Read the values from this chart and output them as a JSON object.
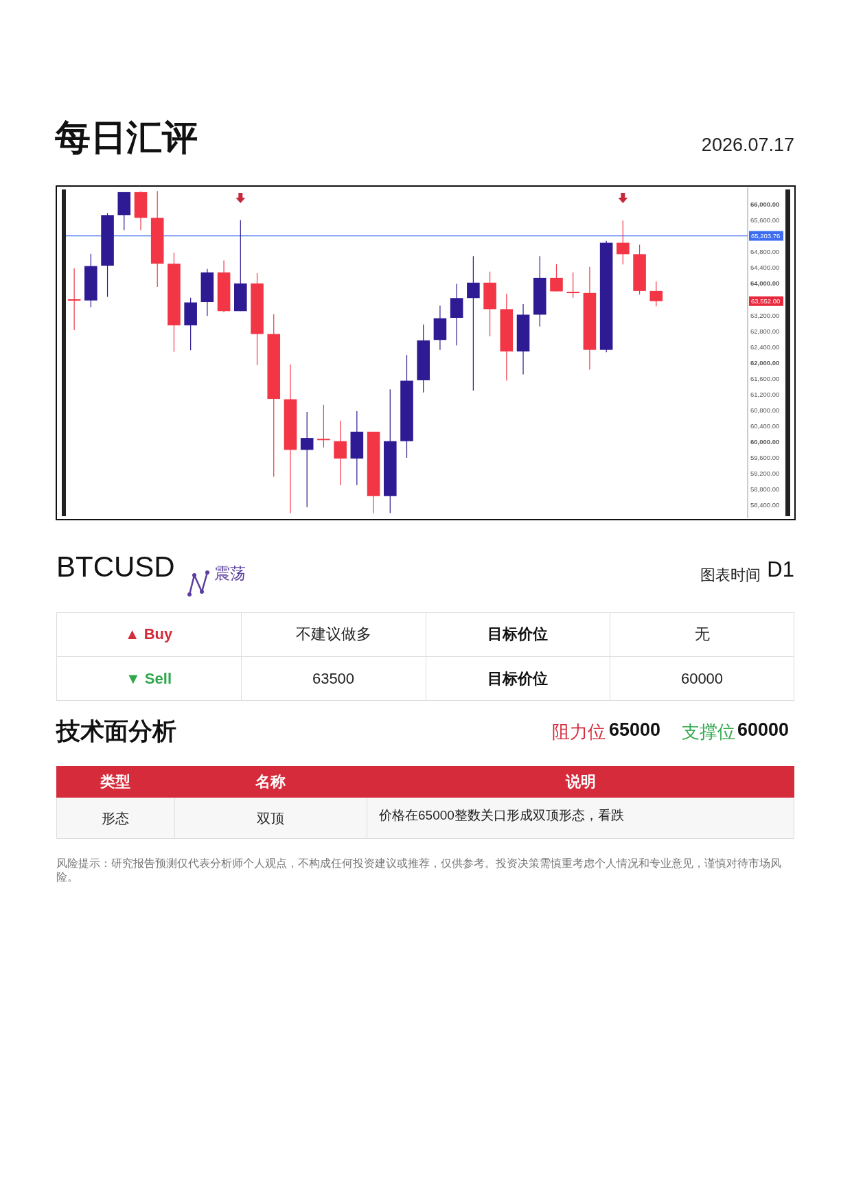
{
  "chart_data": {
    "type": "candlestick",
    "title": "每日汇评",
    "subtitle": "2026.07.17",
    "categories": [
      null,
      null,
      null,
      null,
      null,
      null,
      null,
      null,
      null,
      null,
      null,
      null,
      null,
      null,
      null,
      null,
      null,
      null,
      null,
      null,
      null,
      null,
      null,
      null,
      null,
      null,
      null,
      null,
      null,
      null,
      null,
      null,
      null,
      null,
      null,
      null,
      null,
      null,
      null,
      null,
      null
    ],
    "ohlc": [
      [
        63600,
        64380,
        62820,
        63590
      ],
      [
        63570,
        64750,
        63400,
        64440
      ],
      [
        64450,
        65780,
        63660,
        65730
      ],
      [
        65730,
        66310,
        65350,
        66310
      ],
      [
        66310,
        66330,
        65350,
        65660
      ],
      [
        65660,
        66340,
        63910,
        64500
      ],
      [
        64500,
        64780,
        62270,
        62940
      ],
      [
        62940,
        63640,
        62310,
        63520
      ],
      [
        63530,
        64370,
        63180,
        64280
      ],
      [
        64280,
        64580,
        63270,
        63300
      ],
      [
        63300,
        65600,
        63300,
        64000
      ],
      [
        64000,
        64260,
        61930,
        62720
      ],
      [
        62720,
        63220,
        59110,
        61080
      ],
      [
        61070,
        61950,
        58190,
        59790
      ],
      [
        59790,
        60750,
        58340,
        60090
      ],
      [
        60070,
        60930,
        59850,
        60040
      ],
      [
        60010,
        60530,
        58900,
        59570
      ],
      [
        59570,
        60770,
        58900,
        60250
      ],
      [
        60250,
        60250,
        58190,
        58620
      ],
      [
        58620,
        61320,
        58190,
        60010
      ],
      [
        60010,
        62190,
        59590,
        61540
      ],
      [
        61550,
        62960,
        61240,
        62560
      ],
      [
        62570,
        63440,
        62320,
        63120
      ],
      [
        63130,
        63990,
        62430,
        63630
      ],
      [
        63630,
        64690,
        61290,
        64020
      ],
      [
        64020,
        64300,
        62660,
        63350
      ],
      [
        63350,
        63740,
        61540,
        62280
      ],
      [
        62280,
        63480,
        61700,
        63210
      ],
      [
        63210,
        64690,
        62910,
        64140
      ],
      [
        64140,
        64490,
        63800,
        63800
      ],
      [
        63790,
        64280,
        63640,
        63770
      ],
      [
        63760,
        64420,
        61820,
        62320
      ],
      [
        62320,
        65080,
        62260,
        65030
      ],
      [
        65030,
        65590,
        64480,
        64740
      ],
      [
        64740,
        64980,
        63720,
        63810
      ],
      [
        63810,
        64050,
        63420,
        63552
      ],
      null,
      null,
      null,
      null,
      null
    ],
    "colors": [
      "#f23645",
      "#2e1a93",
      "#2e1a93",
      "#2e1a93",
      "#f23645",
      "#f23645",
      "#f23645",
      "#2e1a93",
      "#2e1a93",
      "#f23645",
      "#2e1a93",
      "#f23645",
      "#f23645",
      "#f23645",
      "#2e1a93",
      "#f23645",
      "#f23645",
      "#2e1a93",
      "#f23645",
      "#2e1a93",
      "#2e1a93",
      "#2e1a93",
      "#2e1a93",
      "#2e1a93",
      "#2e1a93",
      "#f23645",
      "#f23645",
      "#2e1a93",
      "#2e1a93",
      "#f23645",
      "#f23645",
      "#f23645",
      "#2e1a93",
      "#f23645",
      "#f23645",
      "#f23645",
      null,
      null,
      null,
      null,
      null
    ],
    "ylim": [
      58060,
      66430
    ],
    "yticks": [
      {
        "value": 58400,
        "label": "58,400.00"
      },
      {
        "value": 58800,
        "label": "58,800.00"
      },
      {
        "value": 59200,
        "label": "59,200.00"
      },
      {
        "value": 59600,
        "label": "59,600.00"
      },
      {
        "value": 60000,
        "label": "60,000.00"
      },
      {
        "value": 60400,
        "label": "60,400.00"
      },
      {
        "value": 60800,
        "label": "60,800.00"
      },
      {
        "value": 61200,
        "label": "61,200.00"
      },
      {
        "value": 61600,
        "label": "61,600.00"
      },
      {
        "value": 62000,
        "label": "62,000.00"
      },
      {
        "value": 62400,
        "label": "62,400.00"
      },
      {
        "value": 62800,
        "label": "62,800.00"
      },
      {
        "value": 63200,
        "label": "63,200.00"
      },
      {
        "value": 64000,
        "label": "64,000.00"
      },
      {
        "value": 64400,
        "label": "64,400.00"
      },
      {
        "value": 64800,
        "label": "64,800.00"
      },
      {
        "value": 65600,
        "label": "65,600.00"
      },
      {
        "value": 66000,
        "label": "66,000.00"
      }
    ],
    "ref_lines": [
      {
        "axis": "y",
        "value": 65203.76,
        "label": "65,203.76",
        "color": "#3d6cf0"
      }
    ],
    "annotations": [
      "63,552.00",
      "BTCUSD",
      "震荡",
      "图表时间",
      "D1",
      "▲ Buy",
      "不建议做多",
      "目标价位",
      "无",
      "▼ Sell",
      "63500",
      "目标价位",
      "60000",
      "技术面分析",
      "阻力位",
      "65000",
      "支撑位",
      "60000",
      "类型",
      "名称",
      "说明",
      "形态",
      "双顶",
      "价格在65000整数关口形成双顶形态，看跌",
      "风险提示：研究报告预测仅代表分析师个人观点，不构成任何投资建议或推荐，仅供参考。投资决策需慎重考虑个人情况和专业意见，谨慎对待市场风险。"
    ]
  }
}
